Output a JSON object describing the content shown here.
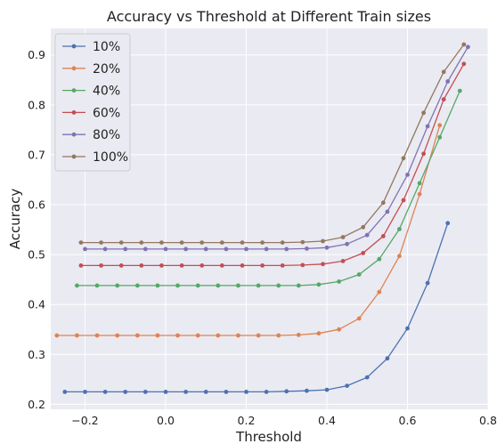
{
  "chart_data": {
    "type": "line",
    "title": "Accuracy vs Threshold at Different Train sizes",
    "xlabel": "Threshold",
    "ylabel": "Accuracy",
    "xlim": [
      -0.285,
      0.8
    ],
    "ylim": [
      0.19,
      0.953
    ],
    "xticks": [
      "−0.2",
      "0.0",
      "0.2",
      "0.4",
      "0.6",
      "0.8"
    ],
    "xtick_values": [
      -0.2,
      0.0,
      0.2,
      0.4,
      0.6,
      0.8
    ],
    "yticks": [
      "0.2",
      "0.3",
      "0.4",
      "0.5",
      "0.6",
      "0.7",
      "0.8",
      "0.9"
    ],
    "ytick_values": [
      0.2,
      0.3,
      0.4,
      0.5,
      0.6,
      0.7,
      0.8,
      0.9
    ],
    "grid": true,
    "legend_position": "top-left",
    "series": [
      {
        "name": "10%",
        "color": "#4c72b0",
        "x": [
          -0.25,
          -0.2,
          -0.15,
          -0.1,
          -0.05,
          0.0,
          0.05,
          0.1,
          0.15,
          0.2,
          0.25,
          0.3,
          0.35,
          0.4,
          0.45,
          0.5,
          0.55,
          0.6,
          0.65,
          0.7
        ],
        "y": [
          0.225,
          0.225,
          0.225,
          0.225,
          0.225,
          0.225,
          0.225,
          0.225,
          0.225,
          0.225,
          0.225,
          0.226,
          0.227,
          0.229,
          0.237,
          0.254,
          0.292,
          0.352,
          0.443,
          0.563
        ]
      },
      {
        "name": "20%",
        "color": "#dd8452",
        "x": [
          -0.27,
          -0.22,
          -0.17,
          -0.12,
          -0.07,
          -0.02,
          0.03,
          0.08,
          0.13,
          0.18,
          0.23,
          0.28,
          0.33,
          0.38,
          0.43,
          0.48,
          0.53,
          0.58,
          0.63,
          0.68
        ],
        "y": [
          0.338,
          0.338,
          0.338,
          0.338,
          0.338,
          0.338,
          0.338,
          0.338,
          0.338,
          0.338,
          0.338,
          0.338,
          0.339,
          0.342,
          0.35,
          0.372,
          0.425,
          0.497,
          0.621,
          0.759
        ]
      },
      {
        "name": "40%",
        "color": "#55a868",
        "x": [
          -0.22,
          -0.17,
          -0.12,
          -0.07,
          -0.02,
          0.03,
          0.08,
          0.13,
          0.18,
          0.23,
          0.28,
          0.33,
          0.38,
          0.43,
          0.48,
          0.53,
          0.58,
          0.63,
          0.68,
          0.73
        ],
        "y": [
          0.438,
          0.438,
          0.438,
          0.438,
          0.438,
          0.438,
          0.438,
          0.438,
          0.438,
          0.438,
          0.438,
          0.438,
          0.44,
          0.446,
          0.46,
          0.491,
          0.551,
          0.643,
          0.735,
          0.828
        ]
      },
      {
        "name": "60%",
        "color": "#c44e52",
        "x": [
          -0.21,
          -0.16,
          -0.11,
          -0.06,
          -0.01,
          0.04,
          0.09,
          0.14,
          0.19,
          0.24,
          0.29,
          0.34,
          0.39,
          0.44,
          0.49,
          0.54,
          0.59,
          0.64,
          0.69,
          0.74
        ],
        "y": [
          0.478,
          0.478,
          0.478,
          0.478,
          0.478,
          0.478,
          0.478,
          0.478,
          0.478,
          0.478,
          0.478,
          0.479,
          0.481,
          0.487,
          0.503,
          0.537,
          0.609,
          0.702,
          0.811,
          0.882
        ]
      },
      {
        "name": "80%",
        "color": "#8172b2",
        "x": [
          -0.2,
          -0.15,
          -0.1,
          -0.05,
          0.0,
          0.05,
          0.1,
          0.15,
          0.2,
          0.25,
          0.3,
          0.35,
          0.4,
          0.45,
          0.5,
          0.55,
          0.6,
          0.65,
          0.7,
          0.75
        ],
        "y": [
          0.511,
          0.511,
          0.511,
          0.511,
          0.511,
          0.511,
          0.511,
          0.511,
          0.511,
          0.511,
          0.511,
          0.512,
          0.514,
          0.521,
          0.539,
          0.586,
          0.66,
          0.757,
          0.847,
          0.916
        ]
      },
      {
        "name": "100%",
        "color": "#937860",
        "x": [
          -0.21,
          -0.16,
          -0.11,
          -0.06,
          -0.01,
          0.04,
          0.09,
          0.14,
          0.19,
          0.24,
          0.29,
          0.34,
          0.39,
          0.44,
          0.49,
          0.54,
          0.59,
          0.64,
          0.69,
          0.74
        ],
        "y": [
          0.524,
          0.524,
          0.524,
          0.524,
          0.524,
          0.524,
          0.524,
          0.524,
          0.524,
          0.524,
          0.524,
          0.525,
          0.527,
          0.535,
          0.555,
          0.604,
          0.693,
          0.784,
          0.866,
          0.921
        ]
      }
    ]
  }
}
